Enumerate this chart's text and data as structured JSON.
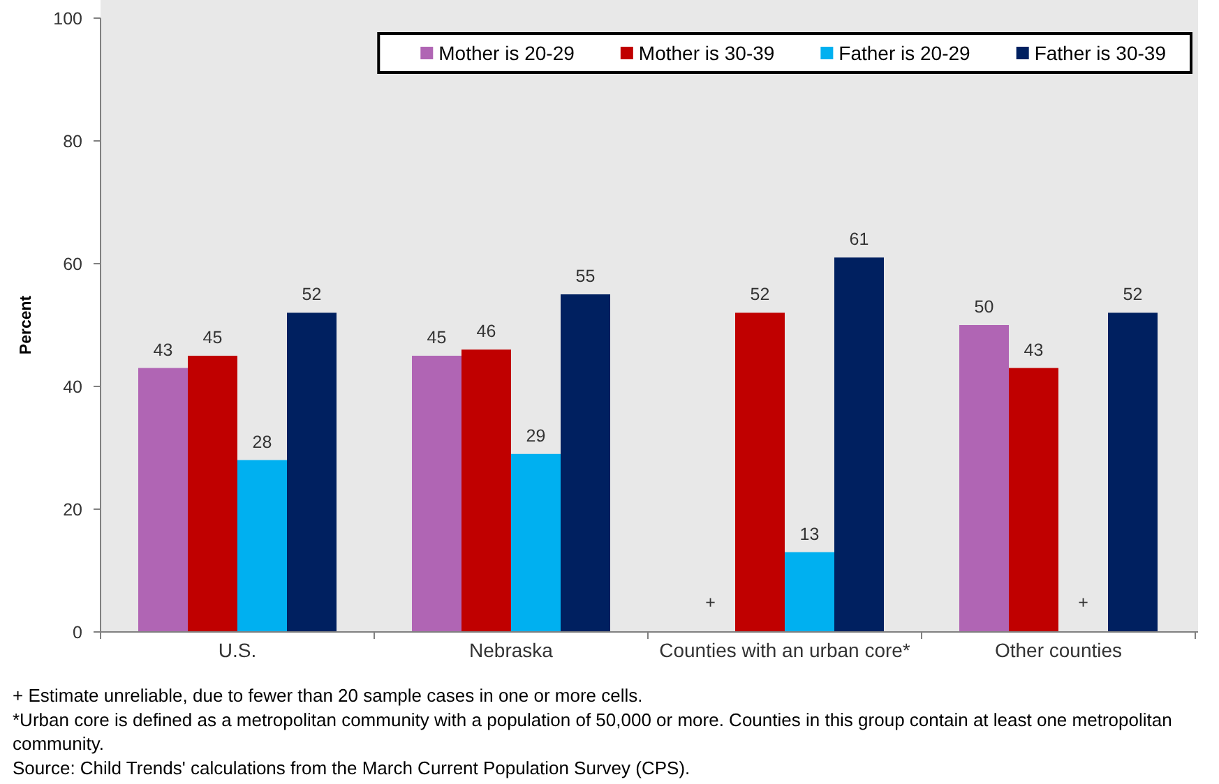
{
  "chart_data": {
    "type": "bar",
    "categories": [
      "U.S.",
      "Nebraska",
      "Counties with an urban core*",
      "Other counties"
    ],
    "series": [
      {
        "name": "Mother is 20-29",
        "color": "#b065b4",
        "values": [
          43,
          45,
          null,
          50
        ],
        "value_labels": [
          "43",
          "45",
          "+",
          "50"
        ]
      },
      {
        "name": "Mother is 30-39",
        "color": "#c00000",
        "values": [
          45,
          46,
          52,
          43
        ],
        "value_labels": [
          "45",
          "46",
          "52",
          "43"
        ]
      },
      {
        "name": "Father is 20-29",
        "color": "#00b0f0",
        "values": [
          28,
          29,
          13,
          null
        ],
        "value_labels": [
          "28",
          "29",
          "13",
          "+"
        ]
      },
      {
        "name": "Father is 30-39",
        "color": "#002060",
        "values": [
          52,
          55,
          61,
          52
        ],
        "value_labels": [
          "52",
          "55",
          "61",
          "52"
        ]
      }
    ],
    "ylabel": "Percent",
    "ylim": [
      0,
      100
    ],
    "yticks": [
      0,
      20,
      40,
      60,
      80,
      100
    ],
    "legend": "top right",
    "annotations": [
      "+ Estimate unreliable, due to fewer than 20 sample cases in one or more cells.",
      "*Urban core is defined as a metropolitan community with a population of 50,000 or more. Counties in this group contain at least one metropolitan community.",
      "Source: Child Trends' calculations from the March Current Population Survey (CPS)."
    ]
  }
}
